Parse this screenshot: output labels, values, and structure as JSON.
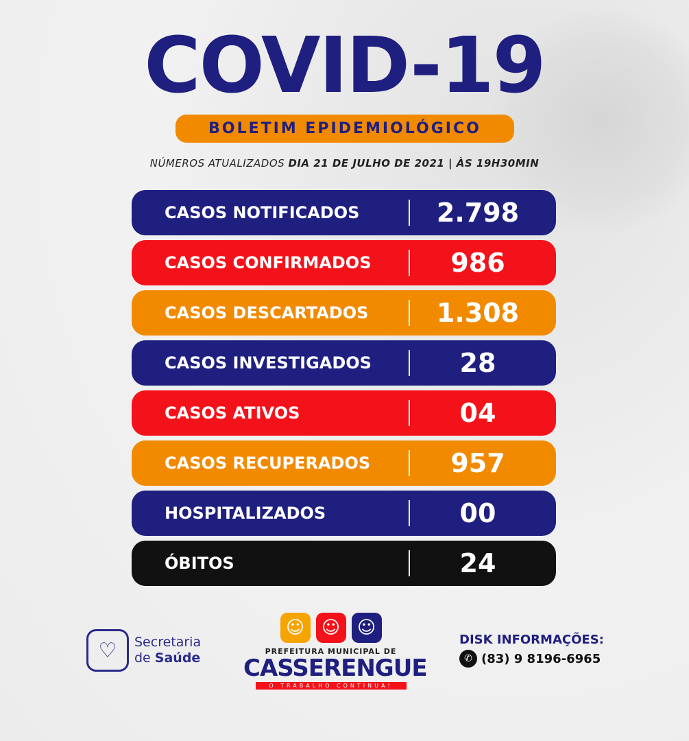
{
  "header": {
    "title": "COVID-19",
    "subtitle": "BOLETIM EPIDEMIOLÓGICO",
    "updated_prefix": "NÚMEROS ATUALIZADOS",
    "updated_date": "DIA 21 DE JULHO DE 2021 | ÀS 19H30MIN"
  },
  "stats": [
    {
      "label": "CASOS NOTIFICADOS",
      "value": "2.798",
      "color": "#1f1f80"
    },
    {
      "label": "CASOS CONFIRMADOS",
      "value": "986",
      "color": "#f4121a"
    },
    {
      "label": "CASOS DESCARTADOS",
      "value": "1.308",
      "color": "#f28a00"
    },
    {
      "label": "CASOS INVESTIGADOS",
      "value": "28",
      "color": "#1f1f80"
    },
    {
      "label": "CASOS ATIVOS",
      "value": "04",
      "color": "#f4121a"
    },
    {
      "label": "CASOS RECUPERADOS",
      "value": "957",
      "color": "#f28a00"
    },
    {
      "label": "HOSPITALIZADOS",
      "value": "00",
      "color": "#1f1f80"
    },
    {
      "label": "ÓBITOS",
      "value": "24",
      "color": "#111111"
    }
  ],
  "footer": {
    "secretaria_line1": "Secretaria",
    "secretaria_line2_a": "de ",
    "secretaria_line2_b": "Saúde",
    "prefeitura": "PREFEITURA MUNICIPAL DE",
    "city": "CASSERENGUE",
    "slogan": "O TRABALHO CONTINUA!",
    "disk_title": "DISK INFORMAÇÕES:",
    "phone": "(83) 9 8196-6965"
  }
}
